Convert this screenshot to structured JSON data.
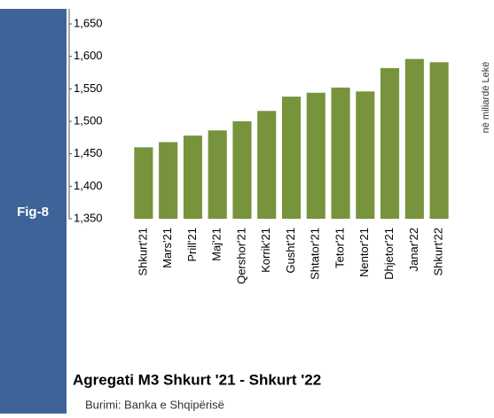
{
  "chart_data": {
    "type": "bar",
    "figure_label": "Fig-8",
    "title": "Agregati M3 Shkurt '21  - Shkurt '22",
    "source": "Burimi: Banka e Shqipërisë",
    "y_axis_label": "në miliardë Lekë",
    "categories": [
      "Shkurt'21",
      "Mars'21",
      "Prill'21",
      "Maj'21",
      "Qershor'21",
      "Korrik'21",
      "Gusht'21",
      "Shtator'21",
      "Tetor'21",
      "Nentor'21",
      "Dhjetor'21",
      "Janar'22",
      "Shkurt'22"
    ],
    "values": [
      1460,
      1468,
      1478,
      1486,
      1500,
      1516,
      1538,
      1544,
      1552,
      1546,
      1582,
      1596,
      1591
    ],
    "color": "#77933c",
    "ylim": [
      1350,
      1650
    ],
    "yticks": [
      {
        "value": 1350,
        "label": "1,350"
      },
      {
        "value": 1400,
        "label": "1,400"
      },
      {
        "value": 1450,
        "label": "1,450"
      },
      {
        "value": 1500,
        "label": "1,500"
      },
      {
        "value": 1550,
        "label": "1,550"
      },
      {
        "value": 1600,
        "label": "1,600"
      },
      {
        "value": 1650,
        "label": "1,650"
      }
    ]
  }
}
